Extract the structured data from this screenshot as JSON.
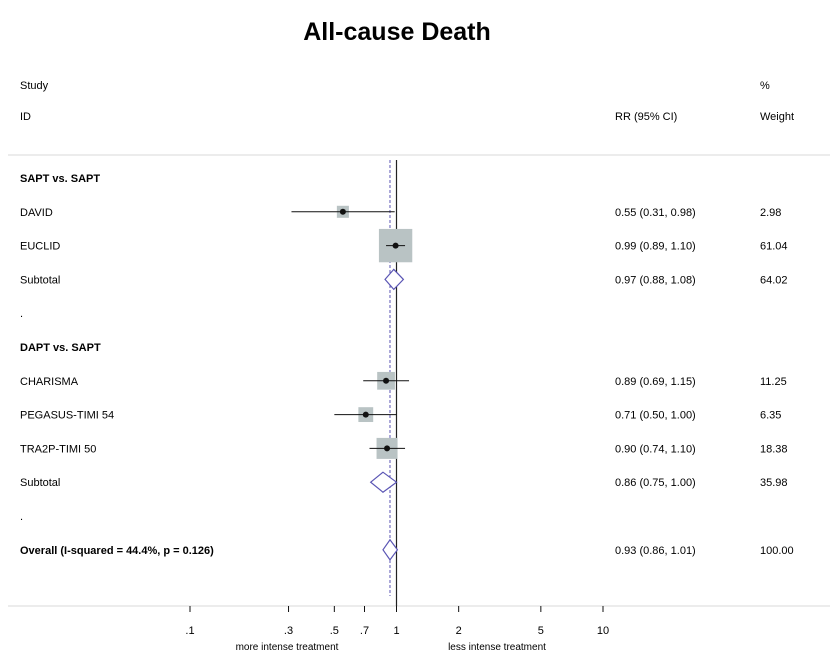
{
  "chart_data": {
    "type": "forest",
    "title": "All-cause Death",
    "headers": {
      "study_line1": "Study",
      "study_line2": "ID",
      "effect": "RR (95% CI)",
      "weight_line1": "%",
      "weight_line2": "Weight"
    },
    "x_scale": "log",
    "xlim": [
      0.1,
      10
    ],
    "reference_line": 1,
    "overall_estimate_line": 0.93,
    "x_ticks": [
      {
        "value": 0.1,
        "label": ".1"
      },
      {
        "value": 0.3,
        "label": ".3"
      },
      {
        "value": 0.5,
        "label": ".5"
      },
      {
        "value": 0.7,
        "label": ".7"
      },
      {
        "value": 1,
        "label": "1"
      },
      {
        "value": 2,
        "label": "2"
      },
      {
        "value": 5,
        "label": "5"
      },
      {
        "value": 10,
        "label": "10"
      }
    ],
    "x_captions": {
      "left": "more intense treatment",
      "right": "less intense treatment"
    },
    "rows": [
      {
        "kind": "header",
        "label": "SAPT vs. SAPT"
      },
      {
        "kind": "study",
        "label": "DAVID",
        "rr": 0.55,
        "lo": 0.31,
        "hi": 0.98,
        "text": "0.55 (0.31, 0.98)",
        "weight": 2.98,
        "weight_text": "2.98"
      },
      {
        "kind": "study",
        "label": "EUCLID",
        "rr": 0.99,
        "lo": 0.89,
        "hi": 1.1,
        "text": "0.99 (0.89, 1.10)",
        "weight": 61.04,
        "weight_text": "61.04"
      },
      {
        "kind": "subtotal",
        "label": "Subtotal",
        "rr": 0.97,
        "lo": 0.88,
        "hi": 1.08,
        "text": "0.97 (0.88, 1.08)",
        "weight": 64.02,
        "weight_text": "64.02"
      },
      {
        "kind": "spacer",
        "label": "."
      },
      {
        "kind": "header",
        "label": "DAPT vs. SAPT"
      },
      {
        "kind": "study",
        "label": "CHARISMA",
        "rr": 0.89,
        "lo": 0.69,
        "hi": 1.15,
        "text": "0.89 (0.69, 1.15)",
        "weight": 11.25,
        "weight_text": "11.25"
      },
      {
        "kind": "study",
        "label": "PEGASUS-TIMI 54",
        "rr": 0.71,
        "lo": 0.5,
        "hi": 1.0,
        "text": "0.71 (0.50, 1.00)",
        "weight": 6.35,
        "weight_text": "6.35"
      },
      {
        "kind": "study",
        "label": "TRA2P-TIMI 50",
        "rr": 0.9,
        "lo": 0.74,
        "hi": 1.1,
        "text": "0.90 (0.74, 1.10)",
        "weight": 18.38,
        "weight_text": "18.38"
      },
      {
        "kind": "subtotal",
        "label": "Subtotal",
        "rr": 0.86,
        "lo": 0.75,
        "hi": 1.0,
        "text": "0.86 (0.75, 1.00)",
        "weight": 35.98,
        "weight_text": "35.98"
      },
      {
        "kind": "spacer",
        "label": "."
      },
      {
        "kind": "overall",
        "label": "Overall  (I-squared = 44.4%, p = 0.126)",
        "rr": 0.93,
        "lo": 0.86,
        "hi": 1.01,
        "text": "0.93 (0.86, 1.01)",
        "weight": 100.0,
        "weight_text": "100.00"
      }
    ],
    "colors": {
      "text": "#111111",
      "weight_box": "#b9c3c4",
      "diamond": "#5a55b4",
      "overall_line": "#5a55b4",
      "rule": "#d8d8d8"
    }
  }
}
